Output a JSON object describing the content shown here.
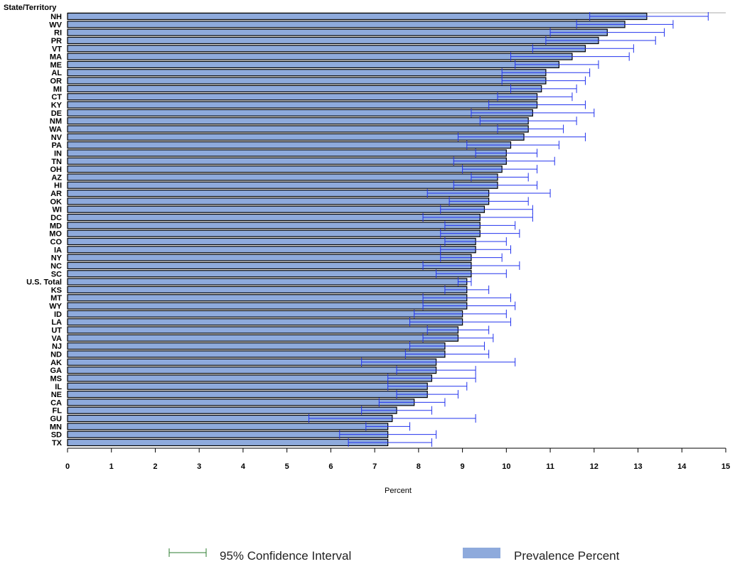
{
  "chart_data": {
    "type": "bar",
    "orientation": "horizontal",
    "ylabel": "State/Territory",
    "xlabel": "Percent",
    "xlim": [
      0,
      15
    ],
    "xticks": [
      0,
      1,
      2,
      3,
      4,
      5,
      6,
      7,
      8,
      9,
      10,
      11,
      12,
      13,
      14,
      15
    ],
    "grid": false,
    "legend_position": "bottom",
    "colors": {
      "bar": "#8eaadc",
      "bar_edge": "#000000",
      "error_bar": "#2233ee",
      "legend_ci": "#2e7d32"
    },
    "legend": [
      "95% Confidence Interval",
      "Prevalence Percent"
    ],
    "categories": [
      "NH",
      "WV",
      "RI",
      "PR",
      "VT",
      "MA",
      "ME",
      "AL",
      "OR",
      "MI",
      "CT",
      "KY",
      "DE",
      "NM",
      "WA",
      "NV",
      "PA",
      "IN",
      "TN",
      "OH",
      "AZ",
      "HI",
      "AR",
      "OK",
      "WI",
      "DC",
      "MD",
      "MO",
      "CO",
      "IA",
      "NY",
      "NC",
      "SC",
      "U.S. Total",
      "KS",
      "MT",
      "WY",
      "ID",
      "LA",
      "UT",
      "VA",
      "NJ",
      "ND",
      "AK",
      "GA",
      "MS",
      "IL",
      "NE",
      "CA",
      "FL",
      "GU",
      "MN",
      "SD",
      "TX"
    ],
    "values": [
      13.2,
      12.7,
      12.3,
      12.1,
      11.8,
      11.5,
      11.2,
      10.9,
      10.9,
      10.8,
      10.7,
      10.7,
      10.6,
      10.5,
      10.5,
      10.4,
      10.1,
      10.0,
      10.0,
      9.9,
      9.8,
      9.8,
      9.6,
      9.6,
      9.5,
      9.4,
      9.4,
      9.4,
      9.3,
      9.3,
      9.2,
      9.2,
      9.2,
      9.1,
      9.1,
      9.1,
      9.1,
      9.0,
      9.0,
      8.9,
      8.9,
      8.6,
      8.6,
      8.4,
      8.4,
      8.3,
      8.2,
      8.2,
      7.9,
      7.5,
      7.4,
      7.3,
      7.3,
      7.3
    ],
    "ci_lower": [
      11.9,
      11.6,
      11.0,
      10.9,
      10.6,
      10.1,
      10.2,
      9.9,
      9.9,
      10.1,
      9.8,
      9.6,
      9.2,
      9.4,
      9.8,
      8.9,
      9.1,
      9.3,
      8.8,
      9.0,
      9.2,
      8.8,
      8.2,
      8.7,
      8.5,
      8.1,
      8.6,
      8.5,
      8.6,
      8.5,
      8.5,
      8.1,
      8.4,
      8.9,
      8.6,
      8.1,
      8.1,
      7.9,
      7.8,
      8.2,
      8.1,
      7.8,
      7.7,
      6.7,
      7.5,
      7.3,
      7.3,
      7.5,
      7.1,
      6.7,
      5.5,
      6.8,
      6.2,
      6.4
    ],
    "ci_upper": [
      14.6,
      13.8,
      13.6,
      13.4,
      12.9,
      12.8,
      12.1,
      11.9,
      11.8,
      11.6,
      11.5,
      11.8,
      12.0,
      11.6,
      11.3,
      11.8,
      11.2,
      10.7,
      11.1,
      10.7,
      10.5,
      10.7,
      11.0,
      10.5,
      10.6,
      10.6,
      10.2,
      10.3,
      10.0,
      10.1,
      9.9,
      10.3,
      10.0,
      9.2,
      9.6,
      10.1,
      10.2,
      10.0,
      10.1,
      9.6,
      9.7,
      9.5,
      9.6,
      10.2,
      9.3,
      9.3,
      9.1,
      8.9,
      8.6,
      8.3,
      9.3,
      7.8,
      8.4,
      8.3
    ]
  }
}
